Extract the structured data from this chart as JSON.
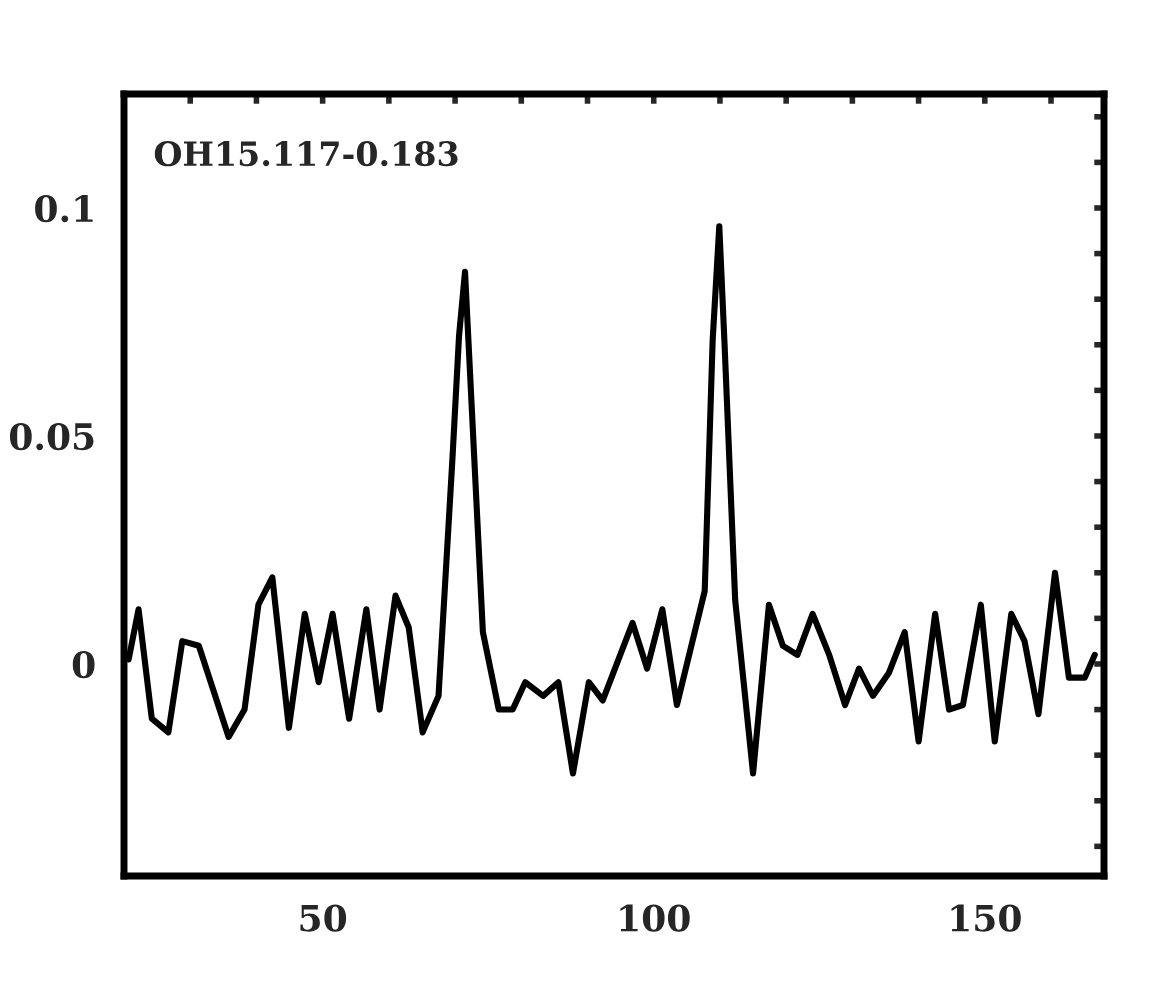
{
  "chart_data": {
    "type": "line",
    "annotations": [
      "OH15.117-0.183"
    ],
    "x": [
      20.7,
      22.2,
      24.2,
      26.7,
      28.8,
      31.3,
      35.8,
      38.2,
      40.3,
      42.4,
      44.9,
      47.3,
      49.4,
      51.5,
      54.0,
      56.6,
      58.6,
      61.0,
      63.0,
      65.1,
      67.5,
      69.6,
      70.6,
      71.5,
      74.2,
      76.6,
      78.7,
      80.6,
      83.3,
      85.6,
      87.8,
      90.2,
      92.3,
      96.8,
      99.0,
      101.3,
      103.5,
      107.7,
      108.9,
      109.9,
      110.7,
      112.3,
      115.0,
      117.4,
      119.5,
      121.7,
      124.0,
      126.5,
      128.9,
      131.0,
      133.1,
      135.5,
      137.9,
      140.0,
      142.5,
      144.6,
      146.7,
      149.4,
      151.5,
      154.0,
      156.0,
      158.1,
      160.6,
      162.7,
      165.1,
      166.6
    ],
    "series": [
      {
        "color": "#000000",
        "values": [
          0.001,
          0.012,
          -0.012,
          -0.015,
          0.005,
          0.004,
          -0.016,
          -0.01,
          0.013,
          0.019,
          -0.014,
          0.011,
          -0.004,
          0.011,
          -0.012,
          0.012,
          -0.01,
          0.015,
          0.008,
          -0.015,
          -0.007,
          0.045,
          0.072,
          0.086,
          0.007,
          -0.01,
          -0.01,
          -0.004,
          -0.007,
          -0.004,
          -0.024,
          -0.004,
          -0.008,
          0.009,
          -0.001,
          0.012,
          -0.009,
          0.016,
          0.071,
          0.096,
          0.07,
          0.014,
          -0.024,
          0.013,
          0.004,
          0.002,
          0.011,
          0.002,
          -0.009,
          -0.001,
          -0.007,
          -0.002,
          0.007,
          -0.017,
          0.011,
          -0.01,
          -0.009,
          0.013,
          -0.017,
          0.011,
          0.005,
          -0.011,
          0.02,
          -0.003,
          -0.003,
          0.002
        ]
      }
    ],
    "xlim": [
      20,
      168
    ],
    "ylim": [
      -0.0465,
      0.125
    ],
    "xticks": [
      {
        "value": 30,
        "label": null
      },
      {
        "value": 40,
        "label": null
      },
      50,
      {
        "value": 60,
        "label": null
      },
      {
        "value": 70,
        "label": null
      },
      {
        "value": 80,
        "label": null
      },
      {
        "value": 90,
        "label": null
      },
      100,
      {
        "value": 110,
        "label": null
      },
      {
        "value": 120,
        "label": null
      },
      {
        "value": 130,
        "label": null
      },
      {
        "value": 140,
        "label": null
      },
      150,
      {
        "value": 160,
        "label": null
      }
    ],
    "yticks": [
      {
        "value": -0.04,
        "label": null
      },
      {
        "value": -0.03,
        "label": null
      },
      {
        "value": -0.02,
        "label": null
      },
      {
        "value": -0.01,
        "label": null
      },
      0,
      {
        "value": 0.01,
        "label": null
      },
      {
        "value": 0.02,
        "label": null
      },
      {
        "value": 0.03,
        "label": null
      },
      {
        "value": 0.04,
        "label": null
      },
      0.05,
      {
        "value": 0.06,
        "label": null
      },
      {
        "value": 0.07,
        "label": null
      },
      {
        "value": 0.08,
        "label": null
      },
      {
        "value": 0.09,
        "label": null
      },
      0.1,
      {
        "value": 0.11,
        "label": null
      },
      {
        "value": 0.12,
        "label": null
      }
    ],
    "grid": false,
    "marker": "none",
    "line_style": "solid"
  }
}
